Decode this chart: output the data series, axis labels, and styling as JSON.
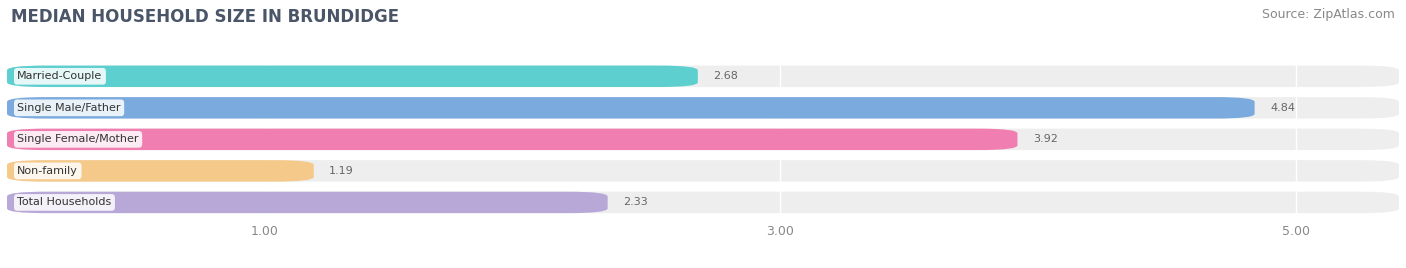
{
  "title": "MEDIAN HOUSEHOLD SIZE IN BRUNDIDGE",
  "source": "Source: ZipAtlas.com",
  "categories": [
    "Married-Couple",
    "Single Male/Father",
    "Single Female/Mother",
    "Non-family",
    "Total Households"
  ],
  "values": [
    2.68,
    4.84,
    3.92,
    1.19,
    2.33
  ],
  "bar_colors": [
    "#5ECFCF",
    "#7BAADE",
    "#F07EB0",
    "#F5C98A",
    "#B8A8D8"
  ],
  "xlim_min": 0.0,
  "xlim_max": 5.4,
  "data_min": 1.0,
  "data_max": 5.0,
  "xticks": [
    1.0,
    3.0,
    5.0
  ],
  "xtick_labels": [
    "1.00",
    "3.00",
    "5.00"
  ],
  "title_fontsize": 12,
  "source_fontsize": 9,
  "label_fontsize": 8,
  "value_fontsize": 8,
  "background_color": "#FFFFFF",
  "bar_background_color": "#EEEEEE",
  "title_color": "#4A5568",
  "source_color": "#888888",
  "value_color": "#666666",
  "bar_height": 0.68,
  "bar_gap": 0.12
}
